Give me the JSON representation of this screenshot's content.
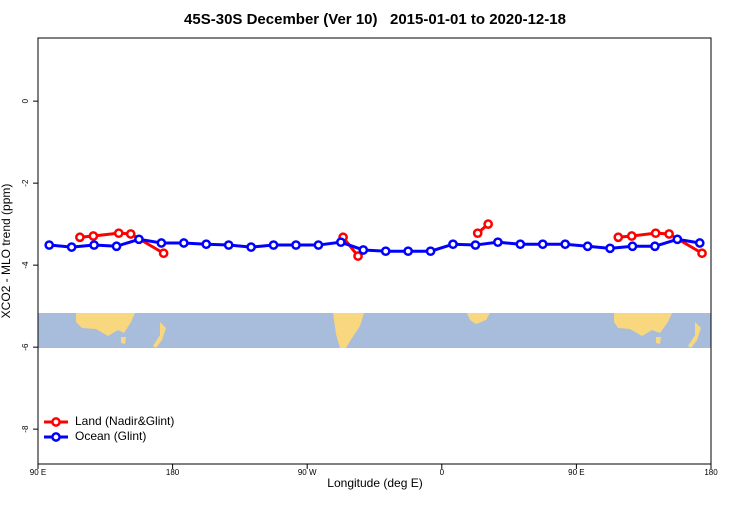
{
  "chart_data": {
    "type": "line",
    "title": "45S-30S December (Ver 10)   2015-01-01 to 2020-12-18",
    "xlabel": "Longitude (deg E)",
    "ylabel": "XCO2 - MLO trend (ppm)",
    "xlim": [
      90,
      540
    ],
    "ylim": [
      -8.85,
      1.54
    ],
    "xticks": [
      {
        "value": 90,
        "label": "90 E"
      },
      180,
      {
        "value": 270,
        "label": "90 W"
      },
      {
        "value": 360,
        "label": "0"
      },
      {
        "value": 450,
        "label": "90 E"
      },
      {
        "value": 540,
        "label": "180"
      }
    ],
    "yticks": [
      0,
      -2,
      -4,
      -6,
      -8
    ],
    "legend": "bottom-left",
    "series": [
      {
        "name": "Land (Nadir&Glint)",
        "color": "#ff0000",
        "x": [
          118,
          127,
          144,
          152,
          174,
          234,
          294,
          304,
          344,
          384,
          391,
          434,
          478,
          487,
          503,
          512,
          534
        ],
        "values": [
          -3.32,
          -3.29,
          -3.22,
          -3.24,
          -3.71,
          null,
          -3.32,
          -3.78,
          null,
          -3.22,
          -3.0,
          null,
          -3.32,
          -3.29,
          -3.22,
          -3.24,
          -3.71
        ]
      },
      {
        "name": "Ocean (Glint)",
        "color": "#0000ff",
        "x": [
          97.5,
          112.5,
          127.5,
          142.5,
          157.5,
          172.5,
          187.5,
          202.5,
          217.5,
          232.5,
          247.5,
          262.5,
          277.5,
          292.5,
          307.5,
          322.5,
          337.5,
          352.5,
          367.5,
          382.5,
          397.5,
          412.5,
          427.5,
          442.5,
          457.5,
          472.5,
          487.5,
          502.5,
          517.5,
          532.5
        ],
        "values": [
          -3.51,
          -3.56,
          -3.51,
          -3.54,
          -3.37,
          -3.46,
          -3.46,
          -3.49,
          -3.51,
          -3.56,
          -3.51,
          -3.51,
          -3.51,
          -3.44,
          -3.63,
          -3.66,
          -3.66,
          -3.66,
          -3.49,
          -3.51,
          -3.44,
          -3.49,
          -3.49,
          -3.49,
          -3.54,
          -3.59,
          -3.54,
          -3.54,
          -3.37,
          -3.46
        ]
      }
    ]
  }
}
